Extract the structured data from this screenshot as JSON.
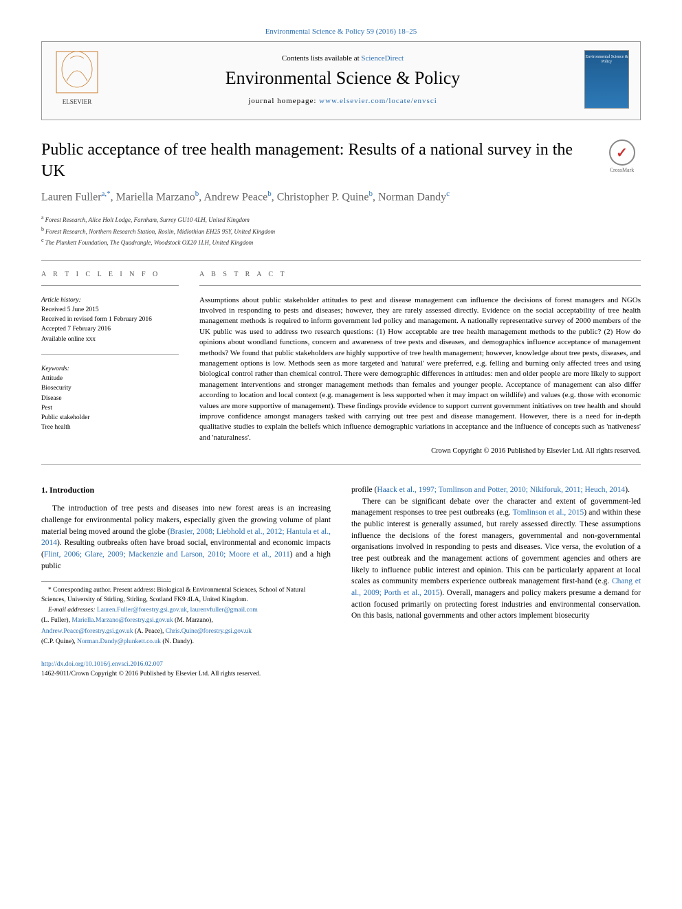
{
  "top_citation_link": "Environmental Science & Policy 59 (2016) 18–25",
  "header": {
    "contents_prefix": "Contents lists available at ",
    "sciencedirect": "ScienceDirect",
    "journal_name": "Environmental Science & Policy",
    "homepage_prefix": "journal homepage: ",
    "homepage_url": "www.elsevier.com/locate/envsci",
    "cover_text": "Environmental Science & Policy"
  },
  "crossmark_label": "CrossMark",
  "article": {
    "title": "Public acceptance of tree health management: Results of a national survey in the UK",
    "authors_html": [
      {
        "name": "Lauren Fuller",
        "sup": "a,*"
      },
      {
        "name": "Mariella Marzano",
        "sup": "b"
      },
      {
        "name": "Andrew Peace",
        "sup": "b"
      },
      {
        "name": "Christopher P. Quine",
        "sup": "b"
      },
      {
        "name": "Norman Dandy",
        "sup": "c"
      }
    ],
    "affiliations": [
      {
        "sup": "a",
        "text": "Forest Research, Alice Holt Lodge, Farnham, Surrey GU10 4LH, United Kingdom"
      },
      {
        "sup": "b",
        "text": "Forest Research, Northern Research Station, Roslin, Midlothian EH25 9SY, United Kingdom"
      },
      {
        "sup": "c",
        "text": "The Plunkett Foundation, The Quadrangle, Woodstock OX20 1LH, United Kingdom"
      }
    ]
  },
  "article_info": {
    "label": "A R T I C L E  I N F O",
    "history_label": "Article history:",
    "received": "Received 5 June 2015",
    "revised": "Received in revised form 1 February 2016",
    "accepted": "Accepted 7 February 2016",
    "online": "Available online xxx",
    "keywords_label": "Keywords:",
    "keywords": [
      "Attitude",
      "Biosecurity",
      "Disease",
      "Pest",
      "Public stakeholder",
      "Tree health"
    ]
  },
  "abstract": {
    "label": "A B S T R A C T",
    "text": "Assumptions about public stakeholder attitudes to pest and disease management can influence the decisions of forest managers and NGOs involved in responding to pests and diseases; however, they are rarely assessed directly. Evidence on the social acceptability of tree health management methods is required to inform government led policy and management. A nationally representative survey of 2000 members of the UK public was used to address two research questions: (1) How acceptable are tree health management methods to the public? (2) How do opinions about woodland functions, concern and awareness of tree pests and diseases, and demographics influence acceptance of management methods? We found that public stakeholders are highly supportive of tree health management; however, knowledge about tree pests, diseases, and management options is low. Methods seen as more targeted and 'natural' were preferred, e.g. felling and burning only affected trees and using biological control rather than chemical control. There were demographic differences in attitudes: men and older people are more likely to support management interventions and stronger management methods than females and younger people. Acceptance of management can also differ according to location and local context (e.g. management is less supported when it may impact on wildlife) and values (e.g. those with economic values are more supportive of management). These findings provide evidence to support current government initiatives on tree health and should improve confidence amongst managers tasked with carrying out tree pest and disease management. However, there is a need for in-depth qualitative studies to explain the beliefs which influence demographic variations in acceptance and the influence of concepts such as 'nativeness' and 'naturalness'.",
    "copyright": "Crown Copyright © 2016 Published by Elsevier Ltd. All rights reserved."
  },
  "intro": {
    "heading": "1. Introduction",
    "col1_p1_a": "The introduction of tree pests and diseases into new forest areas is an increasing challenge for environmental policy makers, especially given the growing volume of plant material being moved around the globe (",
    "col1_p1_ref1": "Brasier, 2008; Liebhold et al., 2012; Hantula et al., 2014",
    "col1_p1_b": "). Resulting outbreaks often have broad social, environmental and economic impacts (",
    "col1_p1_ref2": "Flint, 2006; Glare, 2009; Mackenzie and Larson, 2010; Moore et al., 2011",
    "col1_p1_c": ") and a high public",
    "col2_cont_a": "profile (",
    "col2_cont_ref": "Haack et al., 1997; Tomlinson and Potter, 2010; Nikiforuk, 2011; Heuch, 2014",
    "col2_cont_b": ").",
    "col2_p2_a": "There can be significant debate over the character and extent of government-led management responses to tree pest outbreaks (e.g. ",
    "col2_p2_ref1": "Tomlinson et al., 2015",
    "col2_p2_b": ") and within these the public interest is generally assumed, but rarely assessed directly. These assumptions influence the decisions of the forest managers, governmental and non-governmental organisations involved in responding to pests and diseases. Vice versa, the evolution of a tree pest outbreak and the management actions of government agencies and others are likely to influence public interest and opinion. This can be particularly apparent at local scales as community members experience outbreak management first-hand (e.g. ",
    "col2_p2_ref2": "Chang et al., 2009; Porth et al., 2015",
    "col2_p2_c": "). Overall, managers and policy makers presume a demand for action focused primarily on protecting forest industries and environmental conservation. On this basis, national governments and other actors implement biosecurity"
  },
  "footnotes": {
    "corresponding": "* Corresponding author. Present address: Biological & Environmental Sciences, School of Natural Sciences, University of Stirling, Stirling, Scotland FK9 4LA, United Kingdom.",
    "emails_label": "E-mail addresses: ",
    "emails": [
      {
        "addr": "Lauren.Fuller@forestry.gsi.gov.uk",
        "sep": ", "
      },
      {
        "addr": "laurenvfuller@gmail.com",
        "sep": ""
      }
    ],
    "e1_person": " (L. Fuller), ",
    "e2": "Mariella.Marzano@forestry.gsi.gov.uk",
    "e2_person": " (M. Marzano),",
    "e3": "Andrew.Peace@forestry.gsi.gov.uk",
    "e3_person": " (A. Peace), ",
    "e4": "Chris.Quine@forestry.gsi.gov.uk",
    "e4_person": " (C.P. Quine), ",
    "e5": "Norman.Dandy@plunkett.co.uk",
    "e5_person": " (N. Dandy)."
  },
  "bottom": {
    "doi": "http://dx.doi.org/10.1016/j.envsci.2016.02.007",
    "issn": "1462-9011/Crown Copyright © 2016 Published by Elsevier Ltd. All rights reserved."
  },
  "colors": {
    "link": "#2a6db0",
    "text": "#000000",
    "muted": "#666666",
    "border": "#999999",
    "crossmark_red": "#cc3333"
  }
}
